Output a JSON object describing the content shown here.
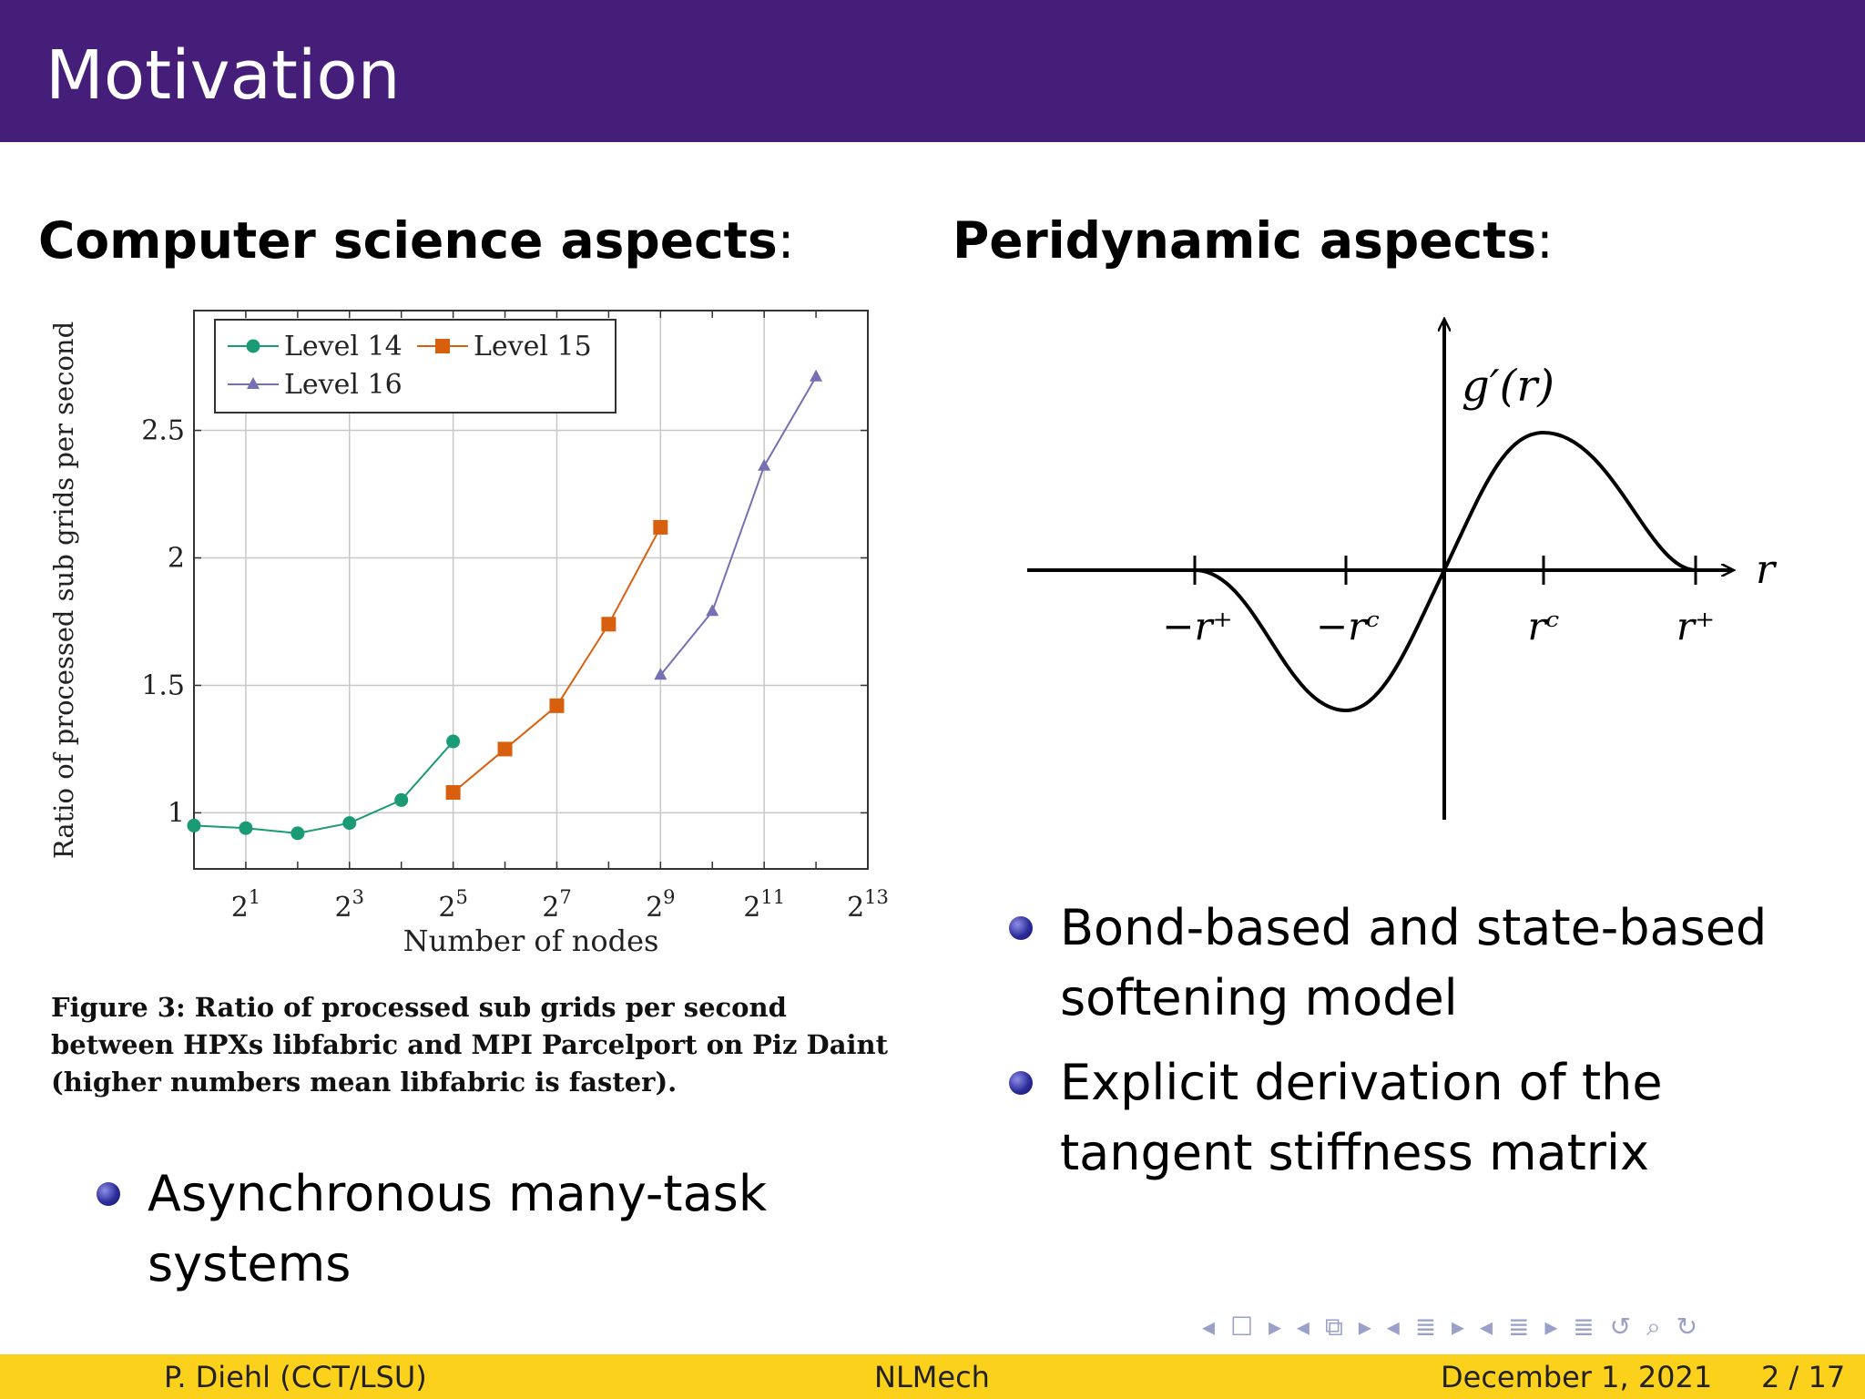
{
  "slide": {
    "title": "Motivation",
    "left_heading": "Computer science aspects",
    "right_heading": "Peridynamic aspects",
    "colon": ":",
    "caption_bold": "Figure 3: Ratio of processed sub grids per second between HPXs libfabric and MPI Parcelport on Piz Daint (higher numbers mean libfabric is faster).",
    "bullets": [
      "Asynchronous many-task systems",
      "Bond-based and state-based softening model",
      "Explicit derivation of the tangent stiffness matrix"
    ]
  },
  "chart_data": {
    "type": "line",
    "title": "",
    "xlabel": "Number of nodes",
    "ylabel": "Ratio of processed sub grids per second",
    "x_scale": "log2",
    "xlim_exponent": [
      0,
      13
    ],
    "ylim": [
      0.78,
      2.97
    ],
    "x_ticks": [
      "2^1",
      "2^3",
      "2^5",
      "2^7",
      "2^9",
      "2^11",
      "2^13"
    ],
    "y_ticks": [
      "1",
      "1.5",
      "2",
      "2.5"
    ],
    "grid": true,
    "legend_position": "top-left",
    "series": [
      {
        "name": "Level 14",
        "color": "#1a9b76",
        "marker": "circle",
        "x_exponent": [
          0,
          1,
          2,
          3,
          4,
          5
        ],
        "y": [
          0.95,
          0.94,
          0.92,
          0.96,
          1.05,
          1.28
        ]
      },
      {
        "name": "Level 15",
        "color": "#d85f0e",
        "marker": "square",
        "x_exponent": [
          5,
          6,
          7,
          8,
          9
        ],
        "y": [
          1.08,
          1.25,
          1.42,
          1.74,
          2.12
        ]
      },
      {
        "name": "Level 16",
        "color": "#7570b3",
        "marker": "triangle",
        "x_exponent": [
          9,
          10,
          11,
          12
        ],
        "y": [
          1.54,
          1.79,
          2.36,
          2.71
        ]
      }
    ]
  },
  "diagram": {
    "function_label": "g′(r)",
    "axis_label": "r",
    "tick_labels": [
      "−r⁺",
      "−rᶜ",
      "rᶜ",
      "r⁺"
    ]
  },
  "footer": {
    "author": "P. Diehl  (CCT/LSU)",
    "short_title": "NLMech",
    "date": "December 1, 2021",
    "page": "2 / 17"
  },
  "nav_icons": [
    "nav-frame-icon",
    "nav-subsection-icon",
    "nav-section-icon",
    "nav-slide-icon",
    "nav-align-icon",
    "nav-search-icon"
  ]
}
